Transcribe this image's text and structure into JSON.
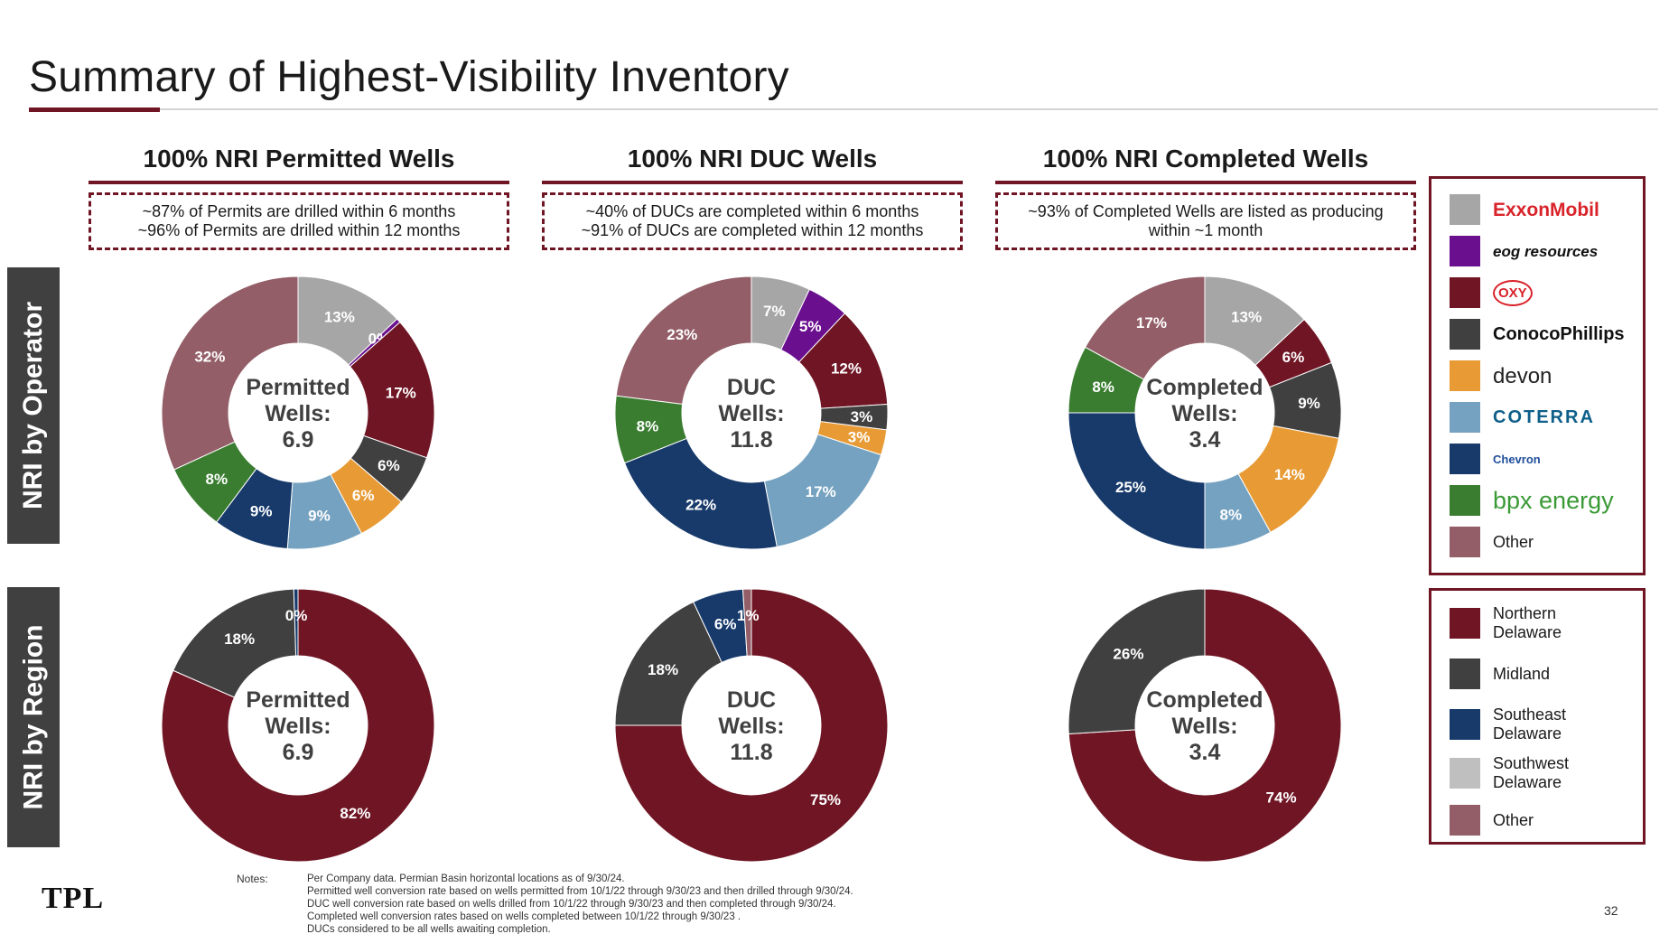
{
  "title": "Summary of Highest-Visibility Inventory",
  "columns": [
    {
      "header": "100% NRI Permitted Wells",
      "notes": [
        "~87% of Permits are drilled within 6 months",
        "~96% of Permits are drilled within 12 months"
      ]
    },
    {
      "header": "100% NRI DUC Wells",
      "notes": [
        "~40% of DUCs are completed within 6 months",
        "~91% of DUCs are completed within 12 months"
      ]
    },
    {
      "header": "100% NRI Completed Wells",
      "notes": [
        "~93% of Completed Wells are listed as producing",
        "within ~1 month"
      ]
    }
  ],
  "row_labels": {
    "operator": "NRI by Operator",
    "region": "NRI by Region"
  },
  "colors": {
    "exxonmobil": "#a6a6a6",
    "eog": "#6a0f8e",
    "oxy": "#6f1524",
    "conocophillips": "#404040",
    "devon": "#e89b35",
    "coterra": "#75a2c0",
    "chevron": "#173a6b",
    "bpx": "#3a7d30",
    "other": "#935e67",
    "northern_delaware": "#6f1524",
    "midland": "#404040",
    "southeast_delaware": "#173a6b",
    "southwest_delaware": "#bfbfbf",
    "region_other": "#935e67"
  },
  "legend_operator": [
    {
      "label": "ExxonMobil",
      "color": "#a6a6a6",
      "brand_color": "#d8232a"
    },
    {
      "label": "eog resources",
      "color": "#6a0f8e",
      "brand_color": "#111111"
    },
    {
      "label": "OXY",
      "color": "#6f1524",
      "brand_color": "#d8232a"
    },
    {
      "label": "ConocoPhillips",
      "color": "#404040",
      "brand_color": "#111111"
    },
    {
      "label": "devon",
      "color": "#e89b35",
      "brand_color": "#222222"
    },
    {
      "label": "COTERRA",
      "color": "#75a2c0",
      "brand_color": "#0e5f8a"
    },
    {
      "label": "Chevron",
      "color": "#173a6b",
      "brand_color": "#1f4e9b"
    },
    {
      "label": "bpx energy",
      "color": "#3a7d30",
      "brand_color": "#3a9a36"
    },
    {
      "label": "Other",
      "color": "#935e67",
      "brand_color": "#1a1a1a"
    }
  ],
  "legend_region": [
    {
      "label": "Northern Delaware",
      "color": "#6f1524"
    },
    {
      "label": "Midland",
      "color": "#404040"
    },
    {
      "label": "Southeast Delaware",
      "color": "#173a6b"
    },
    {
      "label": "Southwest Delaware",
      "color": "#bfbfbf"
    },
    {
      "label": "Other",
      "color": "#935e67"
    }
  ],
  "chart_data": [
    {
      "type": "pie",
      "id": "permitted-operator",
      "center_text": [
        "Permitted",
        "Wells:",
        "6.9"
      ],
      "labels": [
        "ExxonMobil",
        "eog resources",
        "OXY",
        "ConocoPhillips",
        "devon",
        "COTERRA",
        "Chevron",
        "bpx energy",
        "Other"
      ],
      "values": [
        13,
        0.5,
        17,
        6,
        6,
        9,
        9,
        8,
        32
      ],
      "display": [
        "13%",
        "0%",
        "17%",
        "6%",
        "6%",
        "9%",
        "9%",
        "8%",
        "32%"
      ],
      "colors": [
        "#a6a6a6",
        "#6a0f8e",
        "#6f1524",
        "#404040",
        "#e89b35",
        "#75a2c0",
        "#173a6b",
        "#3a7d30",
        "#935e67"
      ]
    },
    {
      "type": "pie",
      "id": "duc-operator",
      "center_text": [
        "DUC",
        "Wells:",
        "11.8"
      ],
      "labels": [
        "ExxonMobil",
        "eog resources",
        "OXY",
        "ConocoPhillips",
        "devon",
        "COTERRA",
        "Chevron",
        "bpx energy",
        "Other"
      ],
      "values": [
        7,
        5,
        12,
        3,
        3,
        17,
        22,
        8,
        23
      ],
      "display": [
        "7%",
        "5%",
        "12%",
        "3%",
        "3%",
        "17%",
        "22%",
        "8%",
        "23%"
      ],
      "colors": [
        "#a6a6a6",
        "#6a0f8e",
        "#6f1524",
        "#404040",
        "#e89b35",
        "#75a2c0",
        "#173a6b",
        "#3a7d30",
        "#935e67"
      ]
    },
    {
      "type": "pie",
      "id": "completed-operator",
      "center_text": [
        "Completed",
        "Wells:",
        "3.4"
      ],
      "labels": [
        "ExxonMobil",
        "OXY",
        "ConocoPhillips",
        "devon",
        "COTERRA",
        "Chevron",
        "bpx energy",
        "Other"
      ],
      "values": [
        13,
        6,
        9,
        14,
        8,
        25,
        8,
        17
      ],
      "display": [
        "13%",
        "6%",
        "9%",
        "14%",
        "8%",
        "25%",
        "8%",
        "17%"
      ],
      "colors": [
        "#a6a6a6",
        "#6f1524",
        "#404040",
        "#e89b35",
        "#75a2c0",
        "#173a6b",
        "#3a7d30",
        "#935e67"
      ]
    },
    {
      "type": "pie",
      "id": "permitted-region",
      "center_text": [
        "Permitted",
        "Wells:",
        "6.9"
      ],
      "labels": [
        "Northern Delaware",
        "Midland",
        "Southeast Delaware"
      ],
      "values": [
        82,
        18,
        0.5
      ],
      "display": [
        "82%",
        "18%",
        "0%"
      ],
      "colors": [
        "#6f1524",
        "#404040",
        "#173a6b"
      ]
    },
    {
      "type": "pie",
      "id": "duc-region",
      "center_text": [
        "DUC",
        "Wells:",
        "11.8"
      ],
      "labels": [
        "Northern Delaware",
        "Midland",
        "Southeast Delaware",
        "Other"
      ],
      "values": [
        75,
        18,
        6,
        1
      ],
      "display": [
        "75%",
        "18%",
        "6%",
        "1%"
      ],
      "colors": [
        "#6f1524",
        "#404040",
        "#173a6b",
        "#935e67"
      ]
    },
    {
      "type": "pie",
      "id": "completed-region",
      "center_text": [
        "Completed",
        "Wells:",
        "3.4"
      ],
      "labels": [
        "Northern Delaware",
        "Midland"
      ],
      "values": [
        74,
        26
      ],
      "display": [
        "74%",
        "26%"
      ],
      "colors": [
        "#6f1524",
        "#404040"
      ]
    }
  ],
  "footer": {
    "logo": "TPL",
    "notes_label": "Notes:",
    "notes": [
      "Per Company data. Permian Basin horizontal locations as of 9/30/24.",
      "Permitted well conversion rate based on wells permitted from 10/1/22 through 9/30/23 and then drilled through 9/30/24.",
      "DUC well conversion rate based on wells drilled from 10/1/22 through 9/30/23 and then completed through 9/30/24.",
      "Completed well conversion rates based on wells completed between 10/1/22 through 9/30/23 .",
      "DUCs considered to be all wells awaiting completion."
    ],
    "page_number": "32"
  }
}
